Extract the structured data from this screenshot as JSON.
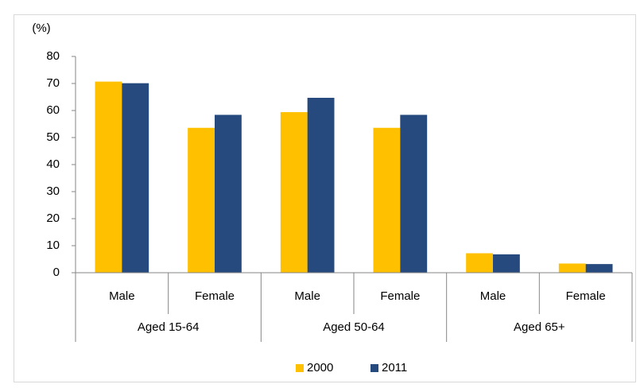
{
  "chart_data": {
    "type": "bar",
    "ylabel": "(%)",
    "categories": [
      "Male",
      "Female",
      "Male",
      "Female",
      "Male",
      "Female"
    ],
    "groups": [
      "Aged 15-64",
      "Aged 50-64",
      "Aged 65+"
    ],
    "series": [
      {
        "name": "2000",
        "color": "#ffc000",
        "values": [
          70.7,
          53.6,
          59.4,
          53.6,
          7.2,
          3.4
        ]
      },
      {
        "name": "2011",
        "color": "#264a7e",
        "values": [
          70.1,
          58.4,
          64.7,
          58.4,
          6.8,
          3.2
        ]
      }
    ],
    "ylim": [
      0,
      80
    ],
    "yticks": [
      0,
      10,
      20,
      30,
      40,
      50,
      60,
      70,
      80
    ],
    "grid": false,
    "legend": "bottom"
  }
}
